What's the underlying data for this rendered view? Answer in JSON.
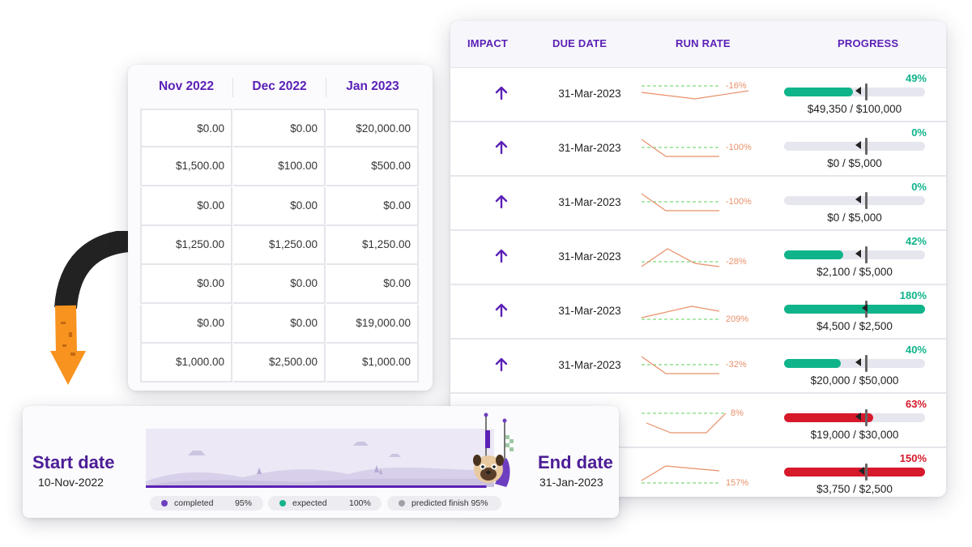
{
  "goals_table": {
    "headers": {
      "impact": "IMPACT",
      "due_date": "DUE DATE",
      "run_rate": "RUN RATE",
      "progress": "PROGRESS"
    },
    "rows": [
      {
        "impact_icon": "arrow-up-icon",
        "due_date": "31-Mar-2023",
        "run_rate_label": "-16%",
        "progress_pct": "49%",
        "progress_value": 0.49,
        "amount": "$49,350 / $100,000",
        "status": "on-track"
      },
      {
        "impact_icon": "arrow-up-icon",
        "due_date": "31-Mar-2023",
        "run_rate_label": "-100%",
        "progress_pct": "0%",
        "progress_value": 0.0,
        "amount": "$0 / $5,000",
        "status": "on-track"
      },
      {
        "impact_icon": "arrow-up-icon",
        "due_date": "31-Mar-2023",
        "run_rate_label": "-100%",
        "progress_pct": "0%",
        "progress_value": 0.0,
        "amount": "$0 / $5,000",
        "status": "on-track"
      },
      {
        "impact_icon": "arrow-up-icon",
        "due_date": "31-Mar-2023",
        "run_rate_label": "-28%",
        "progress_pct": "42%",
        "progress_value": 0.42,
        "amount": "$2,100 / $5,000",
        "status": "on-track"
      },
      {
        "impact_icon": "arrow-up-icon",
        "due_date": "31-Mar-2023",
        "run_rate_label": "209%",
        "progress_pct": "180%",
        "progress_value": 1.8,
        "amount": "$4,500 / $2,500",
        "status": "on-track"
      },
      {
        "impact_icon": "arrow-up-icon",
        "due_date": "31-Mar-2023",
        "run_rate_label": "-32%",
        "progress_pct": "40%",
        "progress_value": 0.4,
        "amount": "$20,000 / $50,000",
        "status": "on-track"
      },
      {
        "impact_icon": "",
        "due_date": "",
        "run_rate_label": "8%",
        "progress_pct": "63%",
        "progress_value": 0.63,
        "amount": "$19,000 / $30,000",
        "status": "off-track"
      },
      {
        "impact_icon": "",
        "due_date": "",
        "run_rate_label": "157%",
        "progress_pct": "150%",
        "progress_value": 1.5,
        "amount": "$3,750 / $2,500",
        "status": "off-track"
      }
    ]
  },
  "monthly_table": {
    "headers": [
      "Nov 2022",
      "Dec 2022",
      "Jan 2023"
    ],
    "rows": [
      [
        "$0.00",
        "$0.00",
        "$20,000.00"
      ],
      [
        "$1,500.00",
        "$100.00",
        "$500.00"
      ],
      [
        "$0.00",
        "$0.00",
        "$0.00"
      ],
      [
        "$1,250.00",
        "$1,250.00",
        "$1,250.00"
      ],
      [
        "$0.00",
        "$0.00",
        "$0.00"
      ],
      [
        "$0.00",
        "$0.00",
        "$19,000.00"
      ],
      [
        "$1,000.00",
        "$2,500.00",
        "$1,000.00"
      ]
    ]
  },
  "timeline": {
    "start_label": "Start date",
    "start_date": "10-Nov-2022",
    "end_label": "End date",
    "end_date": "31-Jan-2023",
    "completed_fraction": 0.95,
    "legend": [
      {
        "label": "completed",
        "value": "95%"
      },
      {
        "label": "expected",
        "value": "100%"
      },
      {
        "label": "predicted finish 95%",
        "value": ""
      }
    ],
    "mascot_icon": "pug-astronaut-icon",
    "finish_flag_icon": "checkered-flag-icon"
  },
  "colors": {
    "purple_header": "#5b21b6",
    "purple_dark": "#4c1d95",
    "teal_ok": "#10b48b",
    "red_alert": "#d6192b",
    "run_rate_line": "#e8906a",
    "run_rate_target": "#5bd05b",
    "legend_completed": "#6d3fc0",
    "legend_expected": "#14b38c",
    "legend_predicted": "#a0a0a8",
    "arrow_orange": "#f7931e",
    "arrow_black": "#222222"
  }
}
